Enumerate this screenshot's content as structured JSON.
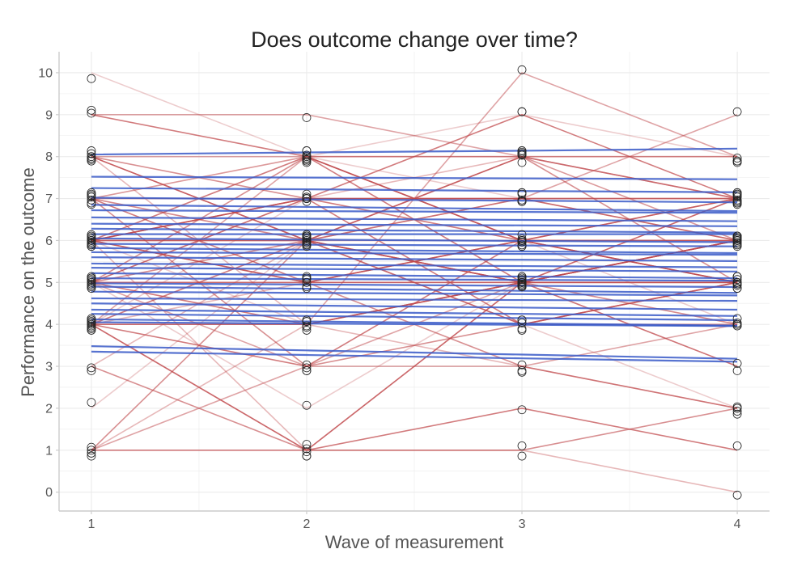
{
  "chart_data": {
    "type": "line",
    "title": "Does outcome change over time?",
    "xlabel": "Wave of measurement",
    "ylabel": "Performance on the outcome",
    "x": [
      1,
      2,
      3,
      4
    ],
    "xlim": [
      0.85,
      4.15
    ],
    "ylim": [
      -0.45,
      10.5
    ],
    "x_ticks": [
      "1",
      "2",
      "3",
      "4"
    ],
    "y_ticks": [
      "0",
      "1",
      "2",
      "3",
      "4",
      "5",
      "6",
      "7",
      "8",
      "9",
      "10"
    ],
    "grid": true,
    "legend": "none",
    "colors": {
      "observed_line": "#c0484b",
      "fitted_line": "#3a5ac8",
      "point_stroke": "#222222",
      "grid": "#ebebeb",
      "axis": "#cccccc"
    },
    "observed": [
      [
        10,
        8,
        5,
        4
      ],
      [
        9,
        9,
        8,
        7
      ],
      [
        9,
        8,
        6,
        5
      ],
      [
        8,
        6,
        5,
        3
      ],
      [
        8,
        7,
        6,
        5
      ],
      [
        8,
        6,
        4,
        2
      ],
      [
        8,
        8,
        8,
        8
      ],
      [
        8,
        6,
        5,
        7
      ],
      [
        8,
        4,
        5,
        6
      ],
      [
        7,
        7,
        7,
        7
      ],
      [
        7,
        8,
        9,
        8
      ],
      [
        7,
        6,
        5,
        4
      ],
      [
        7,
        5,
        5,
        6
      ],
      [
        7,
        8,
        6,
        6
      ],
      [
        7,
        3,
        4,
        5
      ],
      [
        7,
        6,
        8,
        7
      ],
      [
        6,
        6,
        6,
        6
      ],
      [
        6,
        5,
        6,
        7
      ],
      [
        6,
        7,
        8,
        8
      ],
      [
        6,
        8,
        5,
        3
      ],
      [
        6,
        4,
        5,
        5
      ],
      [
        6,
        6,
        7,
        9
      ],
      [
        6,
        7,
        4,
        5
      ],
      [
        6,
        1,
        1,
        0
      ],
      [
        6,
        5,
        3,
        2
      ],
      [
        6,
        8,
        7,
        7
      ],
      [
        6,
        6,
        5,
        6
      ],
      [
        6,
        7,
        7,
        6
      ],
      [
        5,
        6,
        8,
        6
      ],
      [
        5,
        5,
        6,
        7
      ],
      [
        5,
        7,
        7,
        7
      ],
      [
        5,
        3,
        3,
        4
      ],
      [
        5,
        4,
        5,
        6
      ],
      [
        5,
        6,
        4,
        5
      ],
      [
        5,
        8,
        6,
        6
      ],
      [
        5,
        2,
        5,
        6
      ],
      [
        5,
        5,
        5,
        5
      ],
      [
        5,
        7,
        9,
        7
      ],
      [
        4,
        1,
        5,
        7
      ],
      [
        4,
        4,
        5,
        5
      ],
      [
        4,
        6,
        8,
        6
      ],
      [
        4,
        8,
        8,
        7
      ],
      [
        4,
        3,
        6,
        5
      ],
      [
        4,
        5,
        6,
        6
      ],
      [
        4,
        6,
        4,
        4
      ],
      [
        4,
        7,
        6,
        4
      ],
      [
        4,
        4,
        10,
        8
      ],
      [
        4,
        1,
        5,
        5
      ],
      [
        3,
        6,
        7,
        6
      ],
      [
        3,
        1,
        1,
        2
      ],
      [
        2,
        6,
        7,
        7
      ],
      [
        1,
        3,
        5,
        6
      ],
      [
        1,
        1,
        2,
        1
      ],
      [
        1,
        4,
        3,
        2
      ],
      [
        1,
        6,
        8,
        5
      ]
    ],
    "fitted": [
      [
        8.05,
        8.1,
        8.14,
        8.19
      ],
      [
        7.52,
        7.5,
        7.48,
        7.46
      ],
      [
        7.25,
        7.22,
        7.18,
        7.15
      ],
      [
        7.02,
        6.98,
        6.95,
        6.91
      ],
      [
        6.85,
        6.8,
        6.75,
        6.7
      ],
      [
        6.72,
        6.7,
        6.68,
        6.66
      ],
      [
        6.55,
        6.52,
        6.49,
        6.46
      ],
      [
        6.4,
        6.38,
        6.36,
        6.34
      ],
      [
        6.28,
        6.25,
        6.22,
        6.19
      ],
      [
        6.15,
        6.15,
        6.15,
        6.15
      ],
      [
        6.05,
        6.02,
        5.99,
        5.96
      ],
      [
        5.92,
        5.9,
        5.88,
        5.86
      ],
      [
        5.82,
        5.78,
        5.74,
        5.7
      ],
      [
        5.72,
        5.7,
        5.68,
        5.66
      ],
      [
        5.6,
        5.57,
        5.54,
        5.51
      ],
      [
        5.45,
        5.42,
        5.39,
        5.36
      ],
      [
        5.35,
        5.32,
        5.29,
        5.26
      ],
      [
        5.22,
        5.18,
        5.14,
        5.1
      ],
      [
        5.1,
        5.08,
        5.06,
        5.04
      ],
      [
        4.98,
        4.95,
        4.92,
        4.89
      ],
      [
        4.9,
        4.85,
        4.8,
        4.75
      ],
      [
        4.78,
        4.75,
        4.72,
        4.69
      ],
      [
        4.62,
        4.6,
        4.58,
        4.56
      ],
      [
        4.5,
        4.45,
        4.4,
        4.35
      ],
      [
        4.35,
        4.3,
        4.25,
        4.2
      ],
      [
        4.25,
        4.2,
        4.15,
        4.1
      ],
      [
        4.12,
        4.07,
        4.02,
        3.97
      ],
      [
        4.05,
        4.02,
        3.99,
        3.96
      ],
      [
        3.48,
        3.38,
        3.28,
        3.18
      ],
      [
        3.35,
        3.27,
        3.19,
        3.11
      ]
    ]
  }
}
